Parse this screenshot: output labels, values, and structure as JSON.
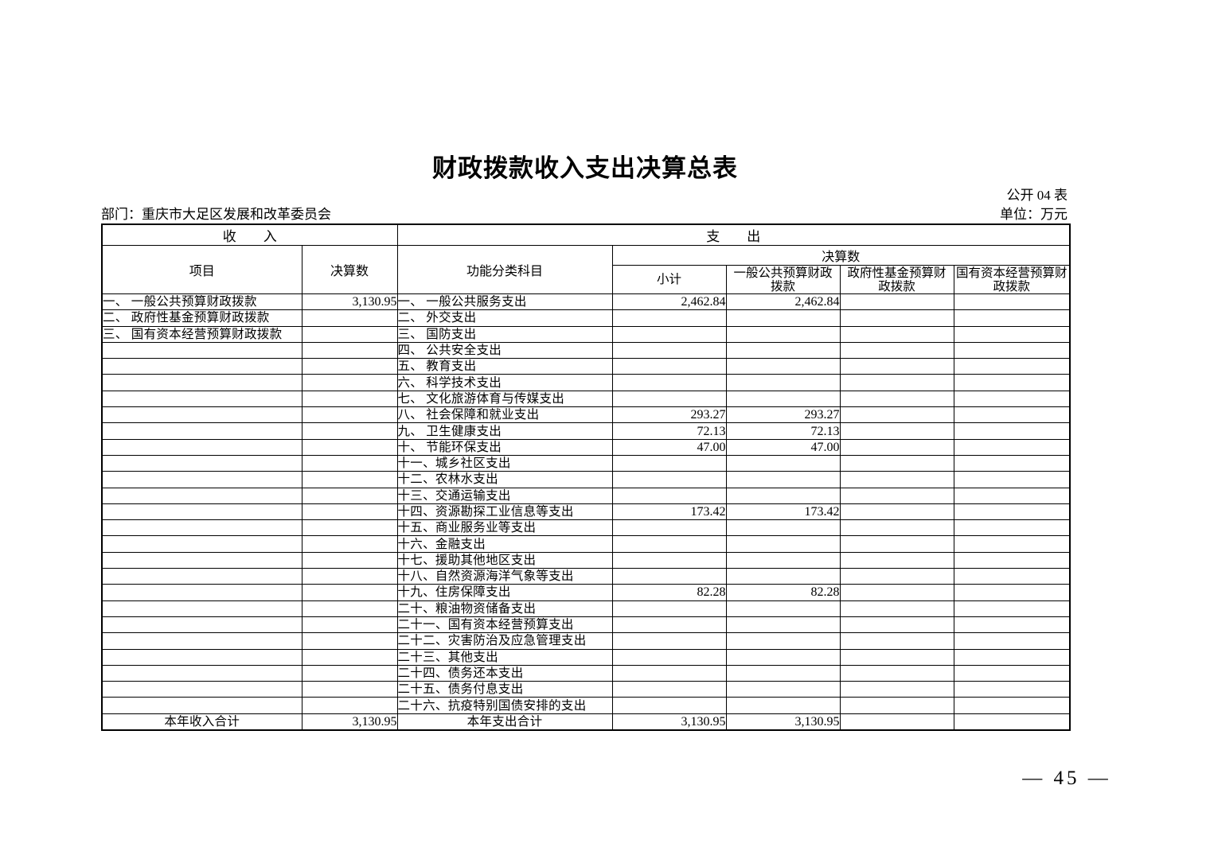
{
  "page": {
    "title": "财政拨款收入支出决算总表",
    "table_code": "公开 04 表",
    "department": "部门：重庆市大足区发展和改革委员会",
    "unit": "单位：万元",
    "page_number": "— 45 —"
  },
  "table": {
    "header": {
      "income_section": "收　　入",
      "expenditure_section": "支　　出",
      "item_col": "项目",
      "income_amount_col": "决算数",
      "function_col": "功能分类科目",
      "expenditure_amount_group": "决算数",
      "subtotal_col": "小计",
      "general_budget_col": "一般公共预算财政\n拨款",
      "gov_fund_col": "政府性基金预算财\n政拨款",
      "state_capital_col": "国有资本经营预算财\n政拨款"
    },
    "income_rows": [
      {
        "label": "一、 一般公共预算财政拨款",
        "value": "3,130.95"
      },
      {
        "label": "二、 政府性基金预算财政拨款",
        "value": ""
      },
      {
        "label": "三、 国有资本经营预算财政拨款",
        "value": ""
      }
    ],
    "expenditure_rows": [
      {
        "label": "一、 一般公共服务支出",
        "subtotal": "2,462.84",
        "general": "2,462.84",
        "fund": "",
        "state": ""
      },
      {
        "label": "二、 外交支出",
        "subtotal": "",
        "general": "",
        "fund": "",
        "state": ""
      },
      {
        "label": "三、 国防支出",
        "subtotal": "",
        "general": "",
        "fund": "",
        "state": ""
      },
      {
        "label": "四、 公共安全支出",
        "subtotal": "",
        "general": "",
        "fund": "",
        "state": ""
      },
      {
        "label": "五、 教育支出",
        "subtotal": "",
        "general": "",
        "fund": "",
        "state": ""
      },
      {
        "label": "六、 科学技术支出",
        "subtotal": "",
        "general": "",
        "fund": "",
        "state": ""
      },
      {
        "label": "七、 文化旅游体育与传媒支出",
        "subtotal": "",
        "general": "",
        "fund": "",
        "state": ""
      },
      {
        "label": "八、 社会保障和就业支出",
        "subtotal": "293.27",
        "general": "293.27",
        "fund": "",
        "state": ""
      },
      {
        "label": "九、 卫生健康支出",
        "subtotal": "72.13",
        "general": "72.13",
        "fund": "",
        "state": ""
      },
      {
        "label": "十、 节能环保支出",
        "subtotal": "47.00",
        "general": "47.00",
        "fund": "",
        "state": ""
      },
      {
        "label": "十一、城乡社区支出",
        "subtotal": "",
        "general": "",
        "fund": "",
        "state": ""
      },
      {
        "label": "十二、农林水支出",
        "subtotal": "",
        "general": "",
        "fund": "",
        "state": ""
      },
      {
        "label": "十三、交通运输支出",
        "subtotal": "",
        "general": "",
        "fund": "",
        "state": ""
      },
      {
        "label": "十四、资源勘探工业信息等支出",
        "subtotal": "173.42",
        "general": "173.42",
        "fund": "",
        "state": ""
      },
      {
        "label": "十五、商业服务业等支出",
        "subtotal": "",
        "general": "",
        "fund": "",
        "state": ""
      },
      {
        "label": "十六、金融支出",
        "subtotal": "",
        "general": "",
        "fund": "",
        "state": ""
      },
      {
        "label": "十七、援助其他地区支出",
        "subtotal": "",
        "general": "",
        "fund": "",
        "state": ""
      },
      {
        "label": "十八、自然资源海洋气象等支出",
        "subtotal": "",
        "general": "",
        "fund": "",
        "state": ""
      },
      {
        "label": "十九、住房保障支出",
        "subtotal": "82.28",
        "general": "82.28",
        "fund": "",
        "state": ""
      },
      {
        "label": "二十、粮油物资储备支出",
        "subtotal": "",
        "general": "",
        "fund": "",
        "state": ""
      },
      {
        "label": "二十一、国有资本经营预算支出",
        "subtotal": "",
        "general": "",
        "fund": "",
        "state": ""
      },
      {
        "label": "二十二、灾害防治及应急管理支出",
        "subtotal": "",
        "general": "",
        "fund": "",
        "state": ""
      },
      {
        "label": "二十三、其他支出",
        "subtotal": "",
        "general": "",
        "fund": "",
        "state": ""
      },
      {
        "label": "二十四、债务还本支出",
        "subtotal": "",
        "general": "",
        "fund": "",
        "state": ""
      },
      {
        "label": "二十五、债务付息支出",
        "subtotal": "",
        "general": "",
        "fund": "",
        "state": ""
      },
      {
        "label": "二十六、抗疫特别国债安排的支出",
        "subtotal": "",
        "general": "",
        "fund": "",
        "state": ""
      }
    ],
    "totals": {
      "income_label": "本年收入合计",
      "income_value": "3,130.95",
      "expenditure_label": "本年支出合计",
      "subtotal": "3,130.95",
      "general": "3,130.95",
      "fund": "",
      "state": ""
    }
  }
}
